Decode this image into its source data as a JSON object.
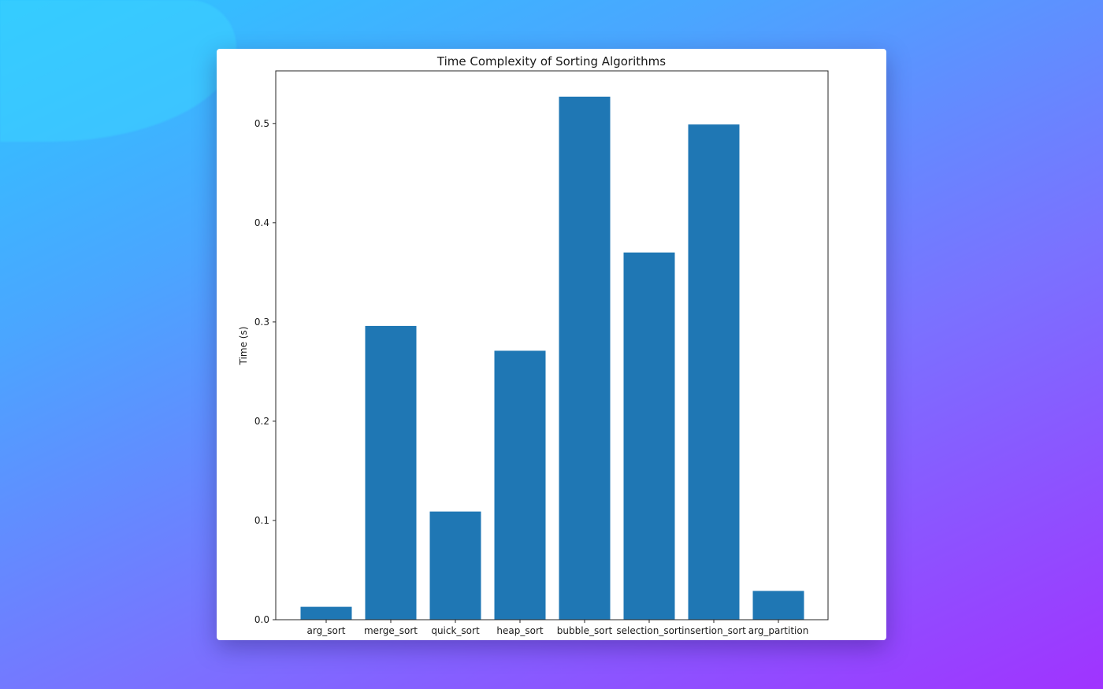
{
  "chart_data": {
    "type": "bar",
    "title": "Time Complexity of Sorting Algorithms",
    "xlabel": "",
    "ylabel": "Time (s)",
    "categories": [
      "arg_sort",
      "merge_sort",
      "quick_sort",
      "heap_sort",
      "bubble_sort",
      "selection_sort",
      "insertion_sort",
      "arg_partition"
    ],
    "values": [
      0.013,
      0.296,
      0.109,
      0.271,
      0.527,
      0.37,
      0.499,
      0.029
    ],
    "ylim": [
      0,
      0.553
    ],
    "yticks": [
      0.0,
      0.1,
      0.2,
      0.3,
      0.4,
      0.5
    ],
    "ytick_labels": [
      "0.0",
      "0.1",
      "0.2",
      "0.3",
      "0.4",
      "0.5"
    ],
    "bar_color": "#1f77b4",
    "grid": false,
    "legend": "none"
  }
}
